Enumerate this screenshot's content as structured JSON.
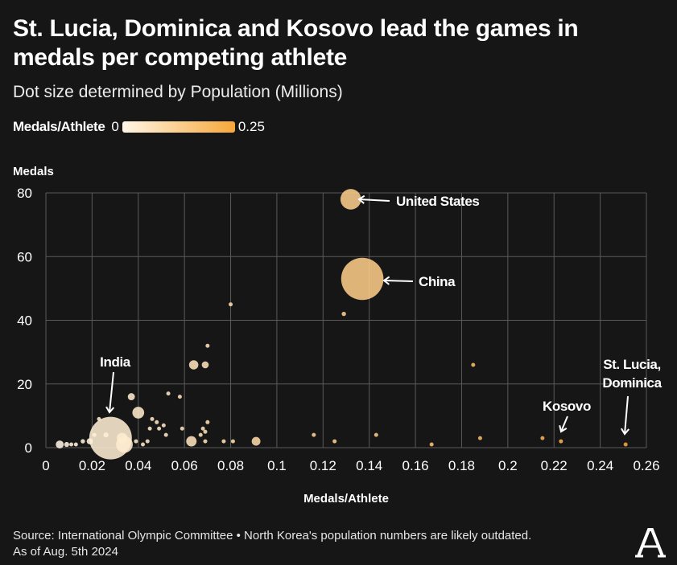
{
  "title": "St. Lucia, Dominica and Kosovo lead the games in medals per competing athlete",
  "subtitle": "Dot size determined by Population (Millions)",
  "legend": {
    "label": "Medals/Athlete",
    "min": "0",
    "max": "0.25"
  },
  "footer": {
    "source": "Source: International Olympic Committee • North Korea's population numbers are likely outdated.",
    "date": "As of Aug. 5th 2024"
  },
  "colors": {
    "background": "#161616",
    "grid": "#5a5a5a",
    "color_min": "#fff6e6",
    "color_max": "#f7a73a"
  },
  "icons": {
    "logo": "atlantic-a-logo-icon"
  },
  "chart_data": {
    "type": "scatter",
    "xlabel": "Medals/Athlete",
    "ylabel": "Medals",
    "xlim": [
      0,
      0.26
    ],
    "ylim": [
      0,
      80
    ],
    "grid": true,
    "x_ticks": [
      "0",
      "0.02",
      "0.04",
      "0.06",
      "0.08",
      "0.1",
      "0.12",
      "0.14",
      "0.16",
      "0.18",
      "0.2",
      "0.22",
      "0.24",
      "0.26"
    ],
    "y_ticks": [
      "0",
      "20",
      "40",
      "60",
      "80"
    ],
    "size_variable": "Population (Millions)",
    "color_variable": "Medals/Athlete",
    "annotations": [
      {
        "text": "United States",
        "x": 0.132,
        "y": 78
      },
      {
        "text": "China",
        "x": 0.137,
        "y": 53
      },
      {
        "text": "India",
        "x": 0.028,
        "y": 3
      },
      {
        "text": "Kosovo",
        "x": 0.223,
        "y": 2
      },
      {
        "text": "St. Lucia, Dominica",
        "x": 0.251,
        "y": 1
      }
    ],
    "points": [
      {
        "x": 0.132,
        "y": 78,
        "population": 335
      },
      {
        "x": 0.137,
        "y": 53,
        "population": 1410
      },
      {
        "x": 0.129,
        "y": 42,
        "population": 15
      },
      {
        "x": 0.08,
        "y": 45,
        "population": 12
      },
      {
        "x": 0.185,
        "y": 26,
        "population": 11
      },
      {
        "x": 0.064,
        "y": 26,
        "population": 68
      },
      {
        "x": 0.069,
        "y": 26,
        "population": 38
      },
      {
        "x": 0.07,
        "y": 32,
        "population": 2
      },
      {
        "x": 0.037,
        "y": 16,
        "population": 40
      },
      {
        "x": 0.053,
        "y": 17,
        "population": 9
      },
      {
        "x": 0.058,
        "y": 16,
        "population": 3
      },
      {
        "x": 0.04,
        "y": 11,
        "population": 110
      },
      {
        "x": 0.023,
        "y": 9,
        "population": 8
      },
      {
        "x": 0.046,
        "y": 9,
        "population": 3
      },
      {
        "x": 0.048,
        "y": 8,
        "population": 3
      },
      {
        "x": 0.051,
        "y": 7,
        "population": 5
      },
      {
        "x": 0.045,
        "y": 6,
        "population": 4
      },
      {
        "x": 0.049,
        "y": 6,
        "population": 3
      },
      {
        "x": 0.052,
        "y": 4,
        "population": 3
      },
      {
        "x": 0.059,
        "y": 6,
        "population": 2
      },
      {
        "x": 0.068,
        "y": 6,
        "population": 3
      },
      {
        "x": 0.07,
        "y": 8,
        "population": 2
      },
      {
        "x": 0.069,
        "y": 5,
        "population": 2
      },
      {
        "x": 0.067,
        "y": 4,
        "population": 2
      },
      {
        "x": 0.028,
        "y": 3,
        "population": 1430
      },
      {
        "x": 0.033,
        "y": 3,
        "population": 90
      },
      {
        "x": 0.034,
        "y": 1,
        "population": 220
      },
      {
        "x": 0.026,
        "y": 4,
        "population": 20
      },
      {
        "x": 0.021,
        "y": 4,
        "population": 10
      },
      {
        "x": 0.019,
        "y": 2,
        "population": 30
      },
      {
        "x": 0.016,
        "y": 2,
        "population": 15
      },
      {
        "x": 0.013,
        "y": 1,
        "population": 5
      },
      {
        "x": 0.006,
        "y": 1,
        "population": 50
      },
      {
        "x": 0.009,
        "y": 1,
        "population": 20
      },
      {
        "x": 0.011,
        "y": 1,
        "population": 10
      },
      {
        "x": 0.039,
        "y": 2,
        "population": 10
      },
      {
        "x": 0.042,
        "y": 1,
        "population": 5
      },
      {
        "x": 0.044,
        "y": 2,
        "population": 4
      },
      {
        "x": 0.063,
        "y": 2,
        "population": 85
      },
      {
        "x": 0.069,
        "y": 2,
        "population": 6
      },
      {
        "x": 0.077,
        "y": 2,
        "population": 10
      },
      {
        "x": 0.081,
        "y": 2,
        "population": 3
      },
      {
        "x": 0.091,
        "y": 2,
        "population": 60
      },
      {
        "x": 0.116,
        "y": 4,
        "population": 1
      },
      {
        "x": 0.125,
        "y": 2,
        "population": 1
      },
      {
        "x": 0.143,
        "y": 4,
        "population": 1
      },
      {
        "x": 0.167,
        "y": 1,
        "population": 1
      },
      {
        "x": 0.188,
        "y": 3,
        "population": 2
      },
      {
        "x": 0.215,
        "y": 3,
        "population": 1
      },
      {
        "x": 0.223,
        "y": 2,
        "population": 1.8
      },
      {
        "x": 0.251,
        "y": 1,
        "population": 0.18
      }
    ]
  }
}
